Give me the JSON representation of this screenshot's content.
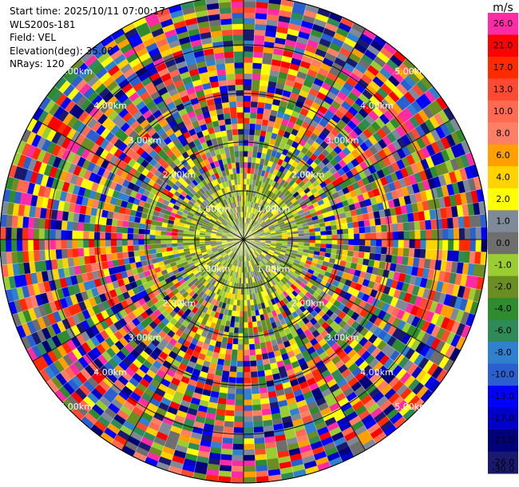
{
  "info": {
    "start_time": "Start time: 2025/10/11 07:00:17",
    "station": "WLS200s-181",
    "field": "Field: VEL",
    "elevation": "Elevation(deg): 35.00",
    "nrays": "NRays: 120"
  },
  "colorbar": {
    "unit": "m/s",
    "levels": [
      {
        "label": "26.0",
        "color": "#ff2aa6"
      },
      {
        "label": "21.0",
        "color": "#ff0000"
      },
      {
        "label": "17.0",
        "color": "#ff2a00"
      },
      {
        "label": "13.0",
        "color": "#ff4a32"
      },
      {
        "label": "10.0",
        "color": "#ff6a50"
      },
      {
        "label": "8.0",
        "color": "#ff7e66"
      },
      {
        "label": "6.0",
        "color": "#ffa000"
      },
      {
        "label": "4.0",
        "color": "#ffd200"
      },
      {
        "label": "2.0",
        "color": "#ffff00"
      },
      {
        "label": "1.0",
        "color": "#7f8a99"
      },
      {
        "label": "0.0",
        "color": "#6e6e6e"
      },
      {
        "label": "-1.0",
        "color": "#9acd32"
      },
      {
        "label": "-2.0",
        "color": "#6b8e23"
      },
      {
        "label": "-4.0",
        "color": "#2e8b2e"
      },
      {
        "label": "-6.0",
        "color": "#2e8b57"
      },
      {
        "label": "-8.0",
        "color": "#3080d0"
      },
      {
        "label": "-10.0",
        "color": "#2a5fd0"
      },
      {
        "label": "-13.0",
        "color": "#0000ff"
      },
      {
        "label": "-17.0",
        "color": "#0000c8"
      },
      {
        "label": "-21.0",
        "color": "#00007a"
      },
      {
        "label": "-26.0",
        "color": "#191970"
      },
      {
        "label": "-30.0",
        "color": "#ffffff"
      }
    ]
  },
  "chart_data": {
    "type": "heatmap",
    "projection": "polar-ppi",
    "field": "VEL",
    "unit": "m/s",
    "nrays": 120,
    "range_rings_km": [
      1,
      2,
      3,
      4,
      5
    ],
    "ring_labels": [
      "1.00km",
      "2.00km",
      "3.00km",
      "4.00km",
      "5.00km"
    ],
    "value_range": [
      -30,
      30
    ],
    "note_values": "velocity field is noisy/random across all gates"
  }
}
